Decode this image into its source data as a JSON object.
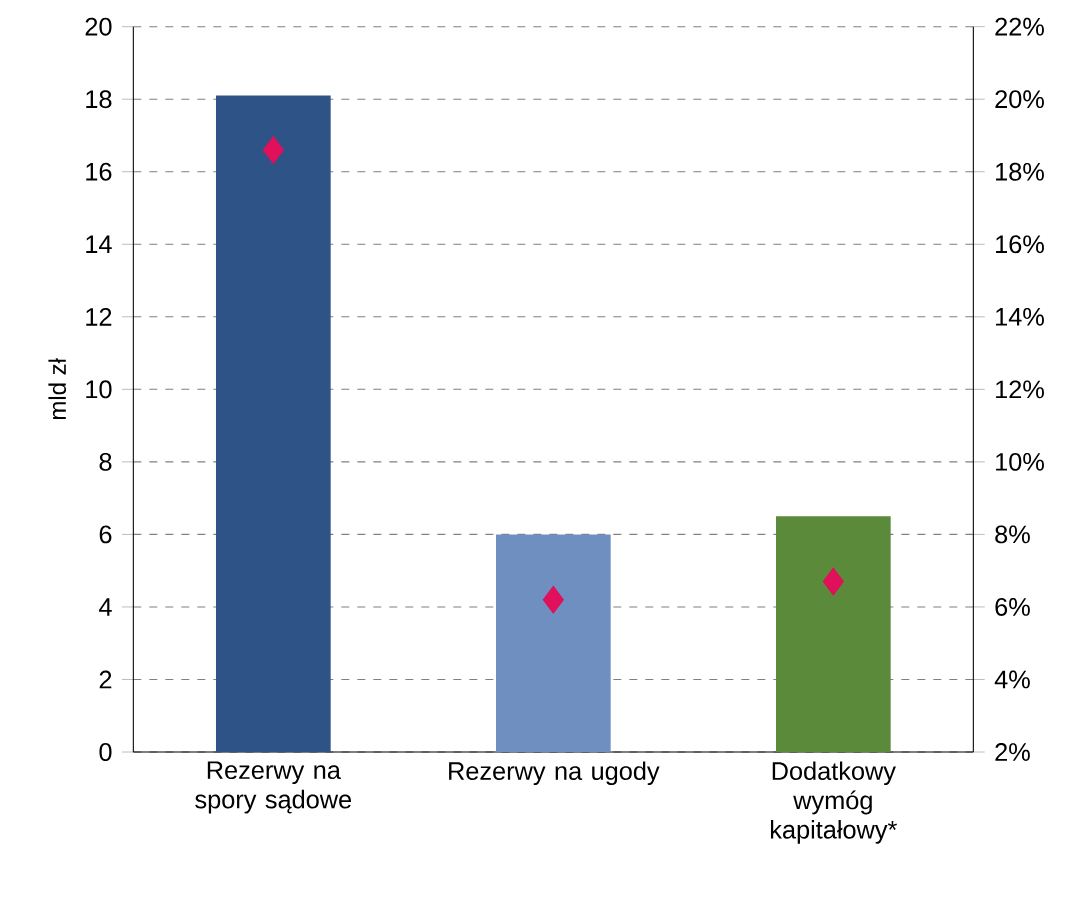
{
  "chart_data": {
    "type": "bar",
    "ylabel": "mld zł",
    "categories": [
      "Rezerwy na spory sądowe",
      "Rezerwy na ugody",
      "Dodatkowy wymóg kapitałowy*"
    ],
    "ylim": [
      0,
      20
    ],
    "yticks": [
      0,
      2,
      4,
      6,
      8,
      10,
      12,
      14,
      16,
      18,
      20
    ],
    "y2lim": [
      2,
      22
    ],
    "y2ticks": [
      {
        "value": 2,
        "label": "2%"
      },
      {
        "value": 4,
        "label": "4%"
      },
      {
        "value": 6,
        "label": "6%"
      },
      {
        "value": 8,
        "label": "8%"
      },
      {
        "value": 10,
        "label": "10%"
      },
      {
        "value": 12,
        "label": "12%"
      },
      {
        "value": 14,
        "label": "14%"
      },
      {
        "value": 16,
        "label": "16%"
      },
      {
        "value": 18,
        "label": "18%"
      },
      {
        "value": 20,
        "label": "20%"
      },
      {
        "value": 22,
        "label": "22%"
      }
    ],
    "grid": "y",
    "series": [
      {
        "colors": [
          "#2e5487",
          "#6f8fc0",
          "#5a8a3a"
        ],
        "values": [
          18.1,
          6.0,
          6.5
        ]
      },
      {
        "type": "scatter",
        "axis": "y2",
        "marker": "diamond",
        "color": "#e0105a",
        "values": [
          18.6,
          6.2,
          6.7
        ]
      }
    ]
  }
}
